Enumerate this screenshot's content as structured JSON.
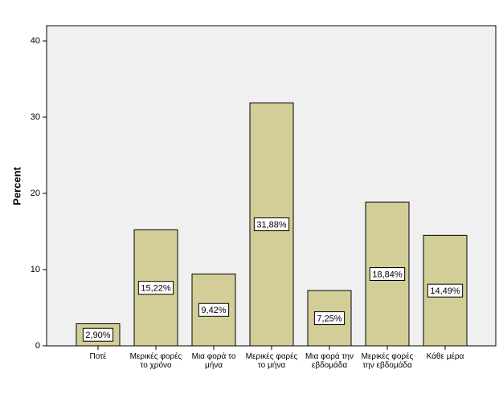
{
  "chart_data": {
    "type": "bar",
    "y_label": "Percent",
    "categories": [
      "Ποτέ",
      "Μερικές φορές το χρόνο",
      "Μια φορά το μήνα",
      "Μερικές φορές το μήνα",
      "Μια φορά την εβδομάδα",
      "Μερικές φορές την εβδομάδα",
      "Κάθε μέρα"
    ],
    "values": [
      2.9,
      15.22,
      9.42,
      31.88,
      7.25,
      18.84,
      14.49
    ],
    "value_labels": [
      "2,90%",
      "15,22%",
      "9,42%",
      "31,88%",
      "7,25%",
      "18,84%",
      "14,49%"
    ],
    "color": "#d3ce97",
    "ylim": [
      0,
      42
    ],
    "yticks": [
      0,
      10,
      20,
      30,
      40
    ]
  }
}
